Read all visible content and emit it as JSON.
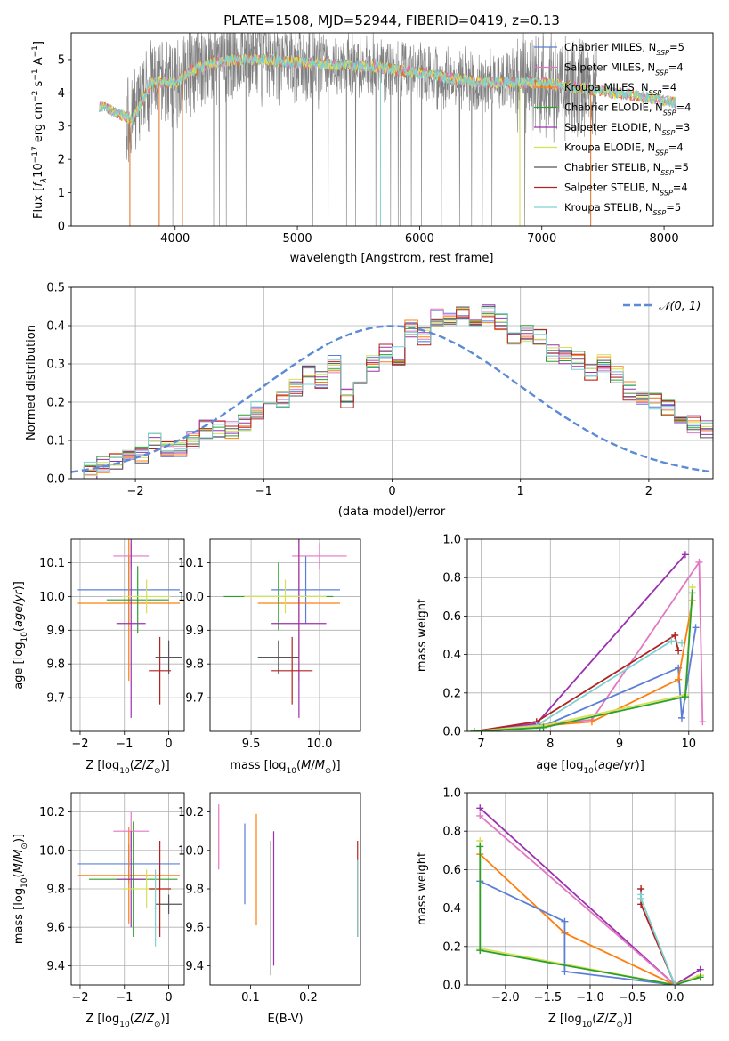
{
  "figure_title": "PLATE=1508, MJD=52944, FIBERID=0419, z=0.13",
  "colors": {
    "Chabrier MILES": "#5b7fd6",
    "Salpeter MILES": "#e377c2",
    "Kroupa MILES": "#ff7f0e",
    "Chabrier ELODIE": "#2ca02c",
    "Salpeter ELODIE": "#9b30b0",
    "Kroupa ELODIE": "#d4e157",
    "Chabrier STELIB": "#555555",
    "Salpeter STELIB": "#b22222",
    "Kroupa STELIB": "#7fd1d1",
    "Kroupa MILES (line)": "#e07020",
    "gaussian": "#5b8ad6",
    "data": "#808080"
  },
  "chart_data": [
    {
      "id": "spectrum",
      "type": "line",
      "title": "PLATE=1508, MJD=52944, FIBERID=0419, z=0.13",
      "xlabel": "wavelength [Angstrom, rest frame]",
      "ylabel": "Flux [f_λ 10^-17 erg cm^-2 s^-1 A^-1]",
      "xlim": [
        3150,
        8400
      ],
      "ylim": [
        0,
        5.8
      ],
      "xticks": [
        "4000",
        "5000",
        "6000",
        "7000",
        "8000"
      ],
      "yticks": [
        "0",
        "1",
        "2",
        "3",
        "4",
        "5"
      ],
      "grid": false,
      "legend_position": "top-right",
      "legend": [
        {
          "base": "Chabrier MILES, N",
          "sub": "SSP",
          "tail": "=5"
        },
        {
          "base": "Salpeter MILES, N",
          "sub": "SSP",
          "tail": "=4"
        },
        {
          "base": "Kroupa MILES, N",
          "sub": "SSP",
          "tail": "=4"
        },
        {
          "base": "Chabrier ELODIE, N",
          "sub": "SSP",
          "tail": "=4"
        },
        {
          "base": "Salpeter ELODIE, N",
          "sub": "SSP",
          "tail": "=3"
        },
        {
          "base": "Kroupa ELODIE, N",
          "sub": "SSP",
          "tail": "=4"
        },
        {
          "base": "Chabrier STELIB, N",
          "sub": "SSP",
          "tail": "=5"
        },
        {
          "base": "Salpeter STELIB, N",
          "sub": "SSP",
          "tail": "=4"
        },
        {
          "base": "Kroupa STELIB, N",
          "sub": "SSP",
          "tail": "=5"
        }
      ],
      "model_envelope": {
        "x": [
          3400,
          3650,
          3700,
          3800,
          4000,
          4100,
          4300,
          4500,
          4700,
          5000,
          5300,
          5600,
          6000,
          6300,
          6600,
          7000,
          7400,
          7800,
          8100
        ],
        "y": [
          3.6,
          3.2,
          3.5,
          4.3,
          4.3,
          4.6,
          4.9,
          5.0,
          5.0,
          4.9,
          4.85,
          4.8,
          4.6,
          4.4,
          4.3,
          4.3,
          4.1,
          3.9,
          3.7
        ]
      },
      "data_range": [
        3400,
        7450
      ]
    },
    {
      "id": "residuals",
      "type": "histogram",
      "xlabel": "(data-model)/error",
      "ylabel": "Normed distribution",
      "xlim": [
        -2.5,
        2.5
      ],
      "ylim": [
        0,
        0.5
      ],
      "xticks": [
        "−2",
        "−1",
        "0",
        "1",
        "2"
      ],
      "yticks": [
        "0.0",
        "0.1",
        "0.2",
        "0.3",
        "0.4",
        "0.5"
      ],
      "grid": true,
      "legend_position": "top-right",
      "legend_label": "𝒩(0, 1)",
      "bin_width": 0.1,
      "bin_start": -2.5,
      "hist_values": [
        0.02,
        0.02,
        0.035,
        0.05,
        0.05,
        0.06,
        0.1,
        0.08,
        0.08,
        0.1,
        0.13,
        0.13,
        0.13,
        0.15,
        0.18,
        0.2,
        0.21,
        0.24,
        0.27,
        0.26,
        0.3,
        0.21,
        0.26,
        0.3,
        0.33,
        0.32,
        0.39,
        0.37,
        0.42,
        0.42,
        0.44,
        0.41,
        0.43,
        0.41,
        0.36,
        0.38,
        0.37,
        0.33,
        0.32,
        0.31,
        0.28,
        0.3,
        0.27,
        0.23,
        0.21,
        0.2,
        0.19,
        0.15,
        0.14,
        0.13,
        0.12,
        0.11,
        0.09,
        0.08,
        0.08,
        0.07,
        0.06,
        0.06,
        0.05,
        0.04,
        0.04,
        0.035,
        0.03,
        0.03,
        0.02,
        0.02,
        0.02,
        0.02,
        0.015,
        0.015,
        0.01,
        0.01,
        0.01,
        0.01,
        0.01
      ]
    },
    {
      "id": "Z-age",
      "type": "errorbar",
      "xlabel": "Z [log10(Z/Z⊙)]",
      "ylabel": "age [log10(age/yr)]",
      "xlim": [
        -2.2,
        0.35
      ],
      "ylim": [
        9.6,
        10.17
      ],
      "xticks": [
        "−2",
        "−1",
        "0"
      ],
      "yticks": [
        "9.7",
        "9.8",
        "9.9",
        "10.0",
        "10.1"
      ],
      "grid": true,
      "points": [
        {
          "x": -0.9,
          "y": 10.02,
          "xerr": 1.15,
          "yerr": 0.1,
          "color": "Chabrier MILES"
        },
        {
          "x": -0.9,
          "y": 9.98,
          "xerr": 1.15,
          "yerr": 0.23,
          "color": "Kroupa MILES"
        },
        {
          "x": -0.7,
          "y": 9.99,
          "xerr": 0.7,
          "yerr": 0.1,
          "color": "Chabrier ELODIE"
        },
        {
          "x": -0.85,
          "y": 10.12,
          "xerr": 0.4,
          "yerr": 0.04,
          "color": "Salpeter MILES"
        },
        {
          "x": -0.85,
          "y": 9.92,
          "xerr": 0.33,
          "yerr": 0.28,
          "color": "Salpeter ELODIE"
        },
        {
          "x": -0.5,
          "y": 10.0,
          "xerr": 0.55,
          "yerr": 0.05,
          "color": "Kroupa ELODIE"
        },
        {
          "x": 0.0,
          "y": 9.82,
          "xerr": 0.3,
          "yerr": 0.05,
          "color": "Chabrier STELIB"
        },
        {
          "x": -0.2,
          "y": 9.78,
          "xerr": 0.25,
          "yerr": 0.1,
          "color": "Salpeter STELIB"
        }
      ]
    },
    {
      "id": "mass-age",
      "type": "errorbar",
      "xlabel": "mass [log10(M/M⊙)]",
      "ylabel": "",
      "xlim": [
        9.2,
        10.3
      ],
      "ylim": [
        9.6,
        10.17
      ],
      "xticks": [
        "9.5",
        "10.0"
      ],
      "yticks": [
        "9.7",
        "9.8",
        "9.9",
        "10.0",
        "10.1"
      ],
      "grid": true,
      "points": [
        {
          "x": 9.9,
          "y": 10.02,
          "xerr": 0.25,
          "yerr": 0.1,
          "color": "Chabrier MILES"
        },
        {
          "x": 9.85,
          "y": 9.98,
          "xerr": 0.3,
          "yerr": 0.23,
          "color": "Kroupa MILES"
        },
        {
          "x": 9.7,
          "y": 10.0,
          "xerr": 0.4,
          "yerr": 0.1,
          "color": "Chabrier ELODIE"
        },
        {
          "x": 10.0,
          "y": 10.12,
          "xerr": 0.2,
          "yerr": 0.04,
          "color": "Salpeter MILES"
        },
        {
          "x": 9.85,
          "y": 9.92,
          "xerr": 0.2,
          "yerr": 0.28,
          "color": "Salpeter ELODIE"
        },
        {
          "x": 9.75,
          "y": 10.0,
          "xerr": 0.3,
          "yerr": 0.05,
          "color": "Kroupa ELODIE"
        },
        {
          "x": 9.7,
          "y": 9.82,
          "xerr": 0.15,
          "yerr": 0.05,
          "color": "Chabrier STELIB"
        },
        {
          "x": 9.8,
          "y": 9.78,
          "xerr": 0.15,
          "yerr": 0.1,
          "color": "Salpeter STELIB"
        }
      ]
    },
    {
      "id": "age-weight",
      "type": "line",
      "xlabel": "age [log10(age/yr)]",
      "ylabel": "mass weight",
      "xlim": [
        6.8,
        10.35
      ],
      "ylim": [
        0,
        1.0
      ],
      "xticks": [
        "7",
        "8",
        "9",
        "10"
      ],
      "yticks": [
        "0.0",
        "0.2",
        "0.4",
        "0.6",
        "0.8",
        "1.0"
      ],
      "grid": true,
      "series": [
        {
          "color": "Salpeter ELODIE",
          "x": [
            6.9,
            7.8,
            9.95
          ],
          "y": [
            0.0,
            0.04,
            0.92
          ]
        },
        {
          "color": "Salpeter MILES",
          "x": [
            6.9,
            8.6,
            10.15,
            10.2
          ],
          "y": [
            0.0,
            0.06,
            0.88,
            0.05
          ]
        },
        {
          "color": "Salpeter STELIB",
          "x": [
            6.9,
            7.8,
            9.8,
            9.85
          ],
          "y": [
            0.0,
            0.05,
            0.5,
            0.42
          ]
        },
        {
          "color": "Kroupa STELIB",
          "x": [
            6.9,
            7.8,
            9.75,
            9.9
          ],
          "y": [
            0.0,
            0.03,
            0.47,
            0.46
          ]
        },
        {
          "color": "Chabrier MILES",
          "x": [
            6.9,
            7.85,
            9.85,
            9.9,
            10.1
          ],
          "y": [
            0.0,
            0.02,
            0.33,
            0.07,
            0.54
          ]
        },
        {
          "color": "Kroupa MILES",
          "x": [
            6.9,
            8.6,
            9.85,
            10.05
          ],
          "y": [
            0.0,
            0.05,
            0.27,
            0.68
          ]
        },
        {
          "color": "Kroupa ELODIE",
          "x": [
            6.9,
            7.9,
            9.95,
            10.05
          ],
          "y": [
            0.0,
            0.03,
            0.19,
            0.75
          ]
        },
        {
          "color": "Chabrier ELODIE",
          "x": [
            6.9,
            7.9,
            9.95,
            10.05
          ],
          "y": [
            0.0,
            0.02,
            0.18,
            0.72
          ]
        }
      ]
    },
    {
      "id": "Z-mass",
      "type": "errorbar",
      "xlabel": "Z [log10(Z/Z⊙)]",
      "ylabel": "mass [log10(M/M⊙)]",
      "xlim": [
        -2.2,
        0.35
      ],
      "ylim": [
        9.3,
        10.3
      ],
      "xticks": [
        "−2",
        "−1",
        "0"
      ],
      "yticks": [
        "9.4",
        "9.6",
        "9.8",
        "10.0",
        "10.2"
      ],
      "grid": true,
      "points": [
        {
          "x": -0.9,
          "y": 9.93,
          "xerr": 1.15,
          "yerr": 0.1,
          "color": "Chabrier MILES"
        },
        {
          "x": -0.9,
          "y": 9.87,
          "xerr": 1.15,
          "yerr": 0.25,
          "color": "Kroupa MILES"
        },
        {
          "x": -0.8,
          "y": 9.85,
          "xerr": 1.0,
          "yerr": 0.3,
          "color": "Chabrier ELODIE"
        },
        {
          "x": -0.85,
          "y": 10.1,
          "xerr": 0.4,
          "yerr": 0.1,
          "color": "Salpeter MILES"
        },
        {
          "x": -0.85,
          "y": 9.85,
          "xerr": 0.33,
          "yerr": 0.25,
          "color": "Salpeter ELODIE"
        },
        {
          "x": -0.5,
          "y": 9.8,
          "xerr": 0.55,
          "yerr": 0.1,
          "color": "Kroupa ELODIE"
        },
        {
          "x": 0.0,
          "y": 9.72,
          "xerr": 0.3,
          "yerr": 0.05,
          "color": "Chabrier STELIB"
        },
        {
          "x": -0.2,
          "y": 9.8,
          "xerr": 0.25,
          "yerr": 0.25,
          "color": "Salpeter STELIB"
        },
        {
          "x": -0.3,
          "y": 9.7,
          "xerr": 0.05,
          "yerr": 0.2,
          "color": "Kroupa STELIB"
        }
      ]
    },
    {
      "id": "ebv-mass",
      "type": "errorbar",
      "xlabel": "E(B-V)",
      "ylabel": "",
      "xlim": [
        0.03,
        0.29
      ],
      "ylim": [
        9.3,
        10.3
      ],
      "xticks": [
        "0.1",
        "0.2"
      ],
      "yticks": [
        "9.4",
        "9.6",
        "9.8",
        "10.0",
        "10.2"
      ],
      "grid": false,
      "points": [
        {
          "x": 0.045,
          "y": 10.07,
          "xerr": 0,
          "yerr": 0.17,
          "color": "Salpeter MILES"
        },
        {
          "x": 0.09,
          "y": 9.93,
          "xerr": 0,
          "yerr": 0.21,
          "color": "Chabrier MILES"
        },
        {
          "x": 0.11,
          "y": 9.9,
          "xerr": 0,
          "yerr": 0.29,
          "color": "Kroupa MILES"
        },
        {
          "x": 0.135,
          "y": 9.7,
          "xerr": 0,
          "yerr": 0.35,
          "color": "Chabrier STELIB"
        },
        {
          "x": 0.14,
          "y": 9.75,
          "xerr": 0,
          "yerr": 0.35,
          "color": "Salpeter ELODIE"
        },
        {
          "x": 0.285,
          "y": 9.8,
          "xerr": 0,
          "yerr": 0.25,
          "color": "Salpeter STELIB"
        },
        {
          "x": 0.285,
          "y": 9.75,
          "xerr": 0,
          "yerr": 0.2,
          "color": "Kroupa STELIB"
        }
      ]
    },
    {
      "id": "Z-weight",
      "type": "line",
      "xlabel": "Z [log10(Z/Z⊙)]",
      "ylabel": "mass weight",
      "xlim": [
        -2.45,
        0.45
      ],
      "ylim": [
        0,
        1.0
      ],
      "xticks": [
        "−2.0",
        "−1.5",
        "−1.0",
        "−0.5",
        "0.0"
      ],
      "yticks": [
        "0.0",
        "0.2",
        "0.4",
        "0.6",
        "0.8",
        "1.0"
      ],
      "grid": true,
      "series": [
        {
          "color": "Salpeter ELODIE",
          "x": [
            -2.3,
            0.0,
            0.3
          ],
          "y": [
            0.92,
            0.0,
            0.08
          ]
        },
        {
          "color": "Salpeter MILES",
          "x": [
            -2.3,
            0.0,
            0.3
          ],
          "y": [
            0.88,
            0.0,
            0.05
          ]
        },
        {
          "color": "Kroupa MILES",
          "x": [
            -2.3,
            -1.3,
            0.0,
            0.3
          ],
          "y": [
            0.68,
            0.27,
            0.0,
            0.05
          ]
        },
        {
          "color": "Chabrier MILES",
          "x": [
            -2.3,
            -1.3,
            -1.3,
            0.0
          ],
          "y": [
            0.54,
            0.33,
            0.07,
            0.0
          ]
        },
        {
          "color": "Kroupa ELODIE",
          "x": [
            -2.3,
            -2.3,
            0.0,
            0.3
          ],
          "y": [
            0.75,
            0.19,
            0.0,
            0.05
          ]
        },
        {
          "color": "Chabrier ELODIE",
          "x": [
            -2.3,
            -2.3,
            0.0,
            0.3
          ],
          "y": [
            0.72,
            0.18,
            0.0,
            0.04
          ]
        },
        {
          "color": "Salpeter STELIB",
          "x": [
            -0.4,
            -0.4,
            0.0
          ],
          "y": [
            0.5,
            0.42,
            0.0
          ]
        },
        {
          "color": "Kroupa STELIB",
          "x": [
            -0.4,
            -0.4,
            0.0
          ],
          "y": [
            0.47,
            0.45,
            0.0
          ]
        }
      ]
    }
  ]
}
